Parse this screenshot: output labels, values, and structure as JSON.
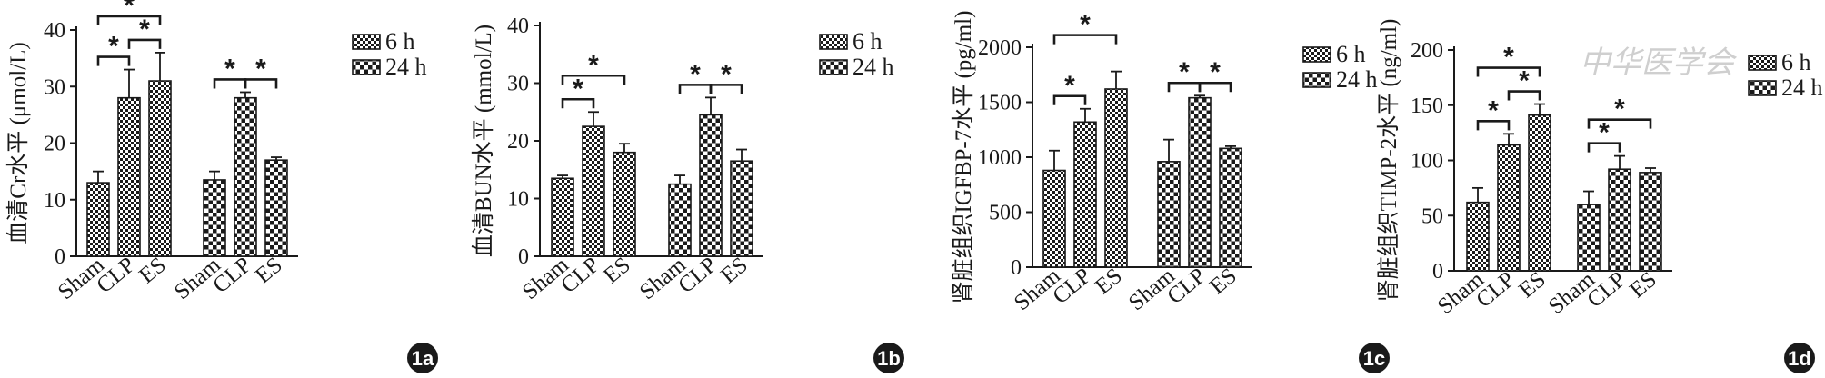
{
  "watermark": "中华医学会",
  "chart_data": [
    {
      "panel": "1a",
      "type": "bar",
      "ylabel": "血清Cr水平 (μmol/L)",
      "ylim": [
        0,
        40
      ],
      "yticks": [
        0,
        10,
        20,
        30,
        40
      ],
      "series": [
        {
          "name": "6 h",
          "pattern": "checker-dense",
          "categories": [
            "Sham",
            "CLP",
            "ES"
          ],
          "values": [
            13,
            28,
            31
          ],
          "errors": [
            2,
            5,
            5
          ]
        },
        {
          "name": "24 h",
          "pattern": "checker-coarse",
          "categories": [
            "Sham",
            "CLP",
            "ES"
          ],
          "values": [
            13.5,
            28,
            17
          ],
          "errors": [
            1.5,
            1,
            0.5
          ]
        }
      ],
      "significance": [
        {
          "group": 0,
          "from": 0,
          "to": 2,
          "label": "*"
        },
        {
          "group": 0,
          "from": 0,
          "to": 1,
          "label": "*"
        },
        {
          "group": 0,
          "from": 1,
          "to": 2,
          "label": "*"
        },
        {
          "group": 1,
          "from": 0,
          "to": 1,
          "label": "*"
        },
        {
          "group": 1,
          "from": 1,
          "to": 2,
          "label": "*"
        }
      ]
    },
    {
      "panel": "1b",
      "type": "bar",
      "ylabel": "血清BUN水平 (mmol/L)",
      "ylim": [
        0,
        40
      ],
      "yticks": [
        0,
        10,
        20,
        30,
        40
      ],
      "series": [
        {
          "name": "6 h",
          "pattern": "checker-dense",
          "categories": [
            "Sham",
            "CLP",
            "ES"
          ],
          "values": [
            13.5,
            22.5,
            18
          ],
          "errors": [
            0.5,
            2.5,
            1.5
          ]
        },
        {
          "name": "24 h",
          "pattern": "checker-coarse",
          "categories": [
            "Sham",
            "CLP",
            "ES"
          ],
          "values": [
            12.5,
            24.5,
            16.5
          ],
          "errors": [
            1.5,
            3,
            2
          ]
        }
      ],
      "significance": [
        {
          "group": 0,
          "from": 0,
          "to": 2,
          "label": "*"
        },
        {
          "group": 0,
          "from": 0,
          "to": 1,
          "label": "*"
        },
        {
          "group": 1,
          "from": 0,
          "to": 1,
          "label": "*"
        },
        {
          "group": 1,
          "from": 1,
          "to": 2,
          "label": "*"
        }
      ]
    },
    {
      "panel": "1c",
      "type": "bar",
      "ylabel": "肾脏组织IGFBP-7水平 (pg/ml)",
      "ylim": [
        0,
        2000
      ],
      "yticks": [
        0,
        500,
        1000,
        1500,
        2000
      ],
      "series": [
        {
          "name": "6 h",
          "pattern": "checker-dense",
          "categories": [
            "Sham",
            "CLP",
            "ES"
          ],
          "values": [
            880,
            1320,
            1620
          ],
          "errors": [
            180,
            120,
            160
          ]
        },
        {
          "name": "24 h",
          "pattern": "checker-coarse",
          "categories": [
            "Sham",
            "CLP",
            "ES"
          ],
          "values": [
            960,
            1540,
            1080
          ],
          "errors": [
            200,
            20,
            20
          ]
        }
      ],
      "significance": [
        {
          "group": 0,
          "from": 0,
          "to": 2,
          "label": "*"
        },
        {
          "group": 0,
          "from": 0,
          "to": 1,
          "label": "*"
        },
        {
          "group": 1,
          "from": 0,
          "to": 1,
          "label": "*"
        },
        {
          "group": 1,
          "from": 1,
          "to": 2,
          "label": "*"
        }
      ]
    },
    {
      "panel": "1d",
      "type": "bar",
      "ylabel": "肾脏组织TIMP-2水平 (ng/ml)",
      "ylim": [
        0,
        200
      ],
      "yticks": [
        0,
        50,
        100,
        150,
        200
      ],
      "series": [
        {
          "name": "6 h",
          "pattern": "checker-dense",
          "categories": [
            "Sham",
            "CLP",
            "ES"
          ],
          "values": [
            62,
            114,
            141
          ],
          "errors": [
            13,
            10,
            10
          ]
        },
        {
          "name": "24 h",
          "pattern": "checker-coarse",
          "categories": [
            "Sham",
            "CLP",
            "ES"
          ],
          "values": [
            60,
            92,
            89
          ],
          "errors": [
            12,
            12,
            4
          ]
        }
      ],
      "significance": [
        {
          "group": 0,
          "from": 0,
          "to": 2,
          "label": "*"
        },
        {
          "group": 0,
          "from": 0,
          "to": 1,
          "label": "*"
        },
        {
          "group": 0,
          "from": 1,
          "to": 2,
          "label": "*"
        },
        {
          "group": 1,
          "from": 0,
          "to": 2,
          "label": "*"
        },
        {
          "group": 1,
          "from": 0,
          "to": 1,
          "label": "*"
        }
      ]
    }
  ]
}
